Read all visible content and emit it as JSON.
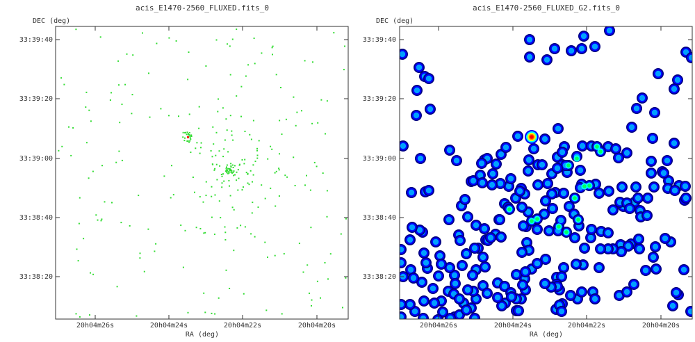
{
  "chart_data": [
    {
      "type": "scatter",
      "title": "acis_E1470-2560_FLUXED.fits_0",
      "xlabel": "RA (deg)",
      "ylabel": "DEC (deg)",
      "x_ticks": [
        "20h04m26s",
        "20h04m24s",
        "20h04m22s",
        "20h04m20s"
      ],
      "y_ticks": [
        "33:39:40",
        "33:39:20",
        "33:39:00",
        "33:38:40",
        "33:38:20"
      ],
      "grid": false,
      "rendering": "event-pixels",
      "colors": {
        "event": "#33dd33",
        "peak": "#ff2020",
        "background": "#ffffff"
      }
    },
    {
      "type": "heatmap",
      "title": "acis_E1470-2560_FLUXED_G2.fits_0",
      "xlabel": "RA (deg)",
      "ylabel": "DEC (deg)",
      "x_ticks": [
        "20h04m26s",
        "20h04m24s",
        "20h04m22s",
        "20h04m20s"
      ],
      "y_ticks": [
        "33:39:40",
        "33:39:20",
        "33:39:00",
        "33:38:40",
        "33:38:20"
      ],
      "grid": false,
      "rendering": "gaussian-smoothed",
      "colormap": [
        "#000080",
        "#0000ff",
        "#00a0ff",
        "#00ffff",
        "#00ff60",
        "#ffff00",
        "#ff8000",
        "#ff0000"
      ]
    }
  ]
}
